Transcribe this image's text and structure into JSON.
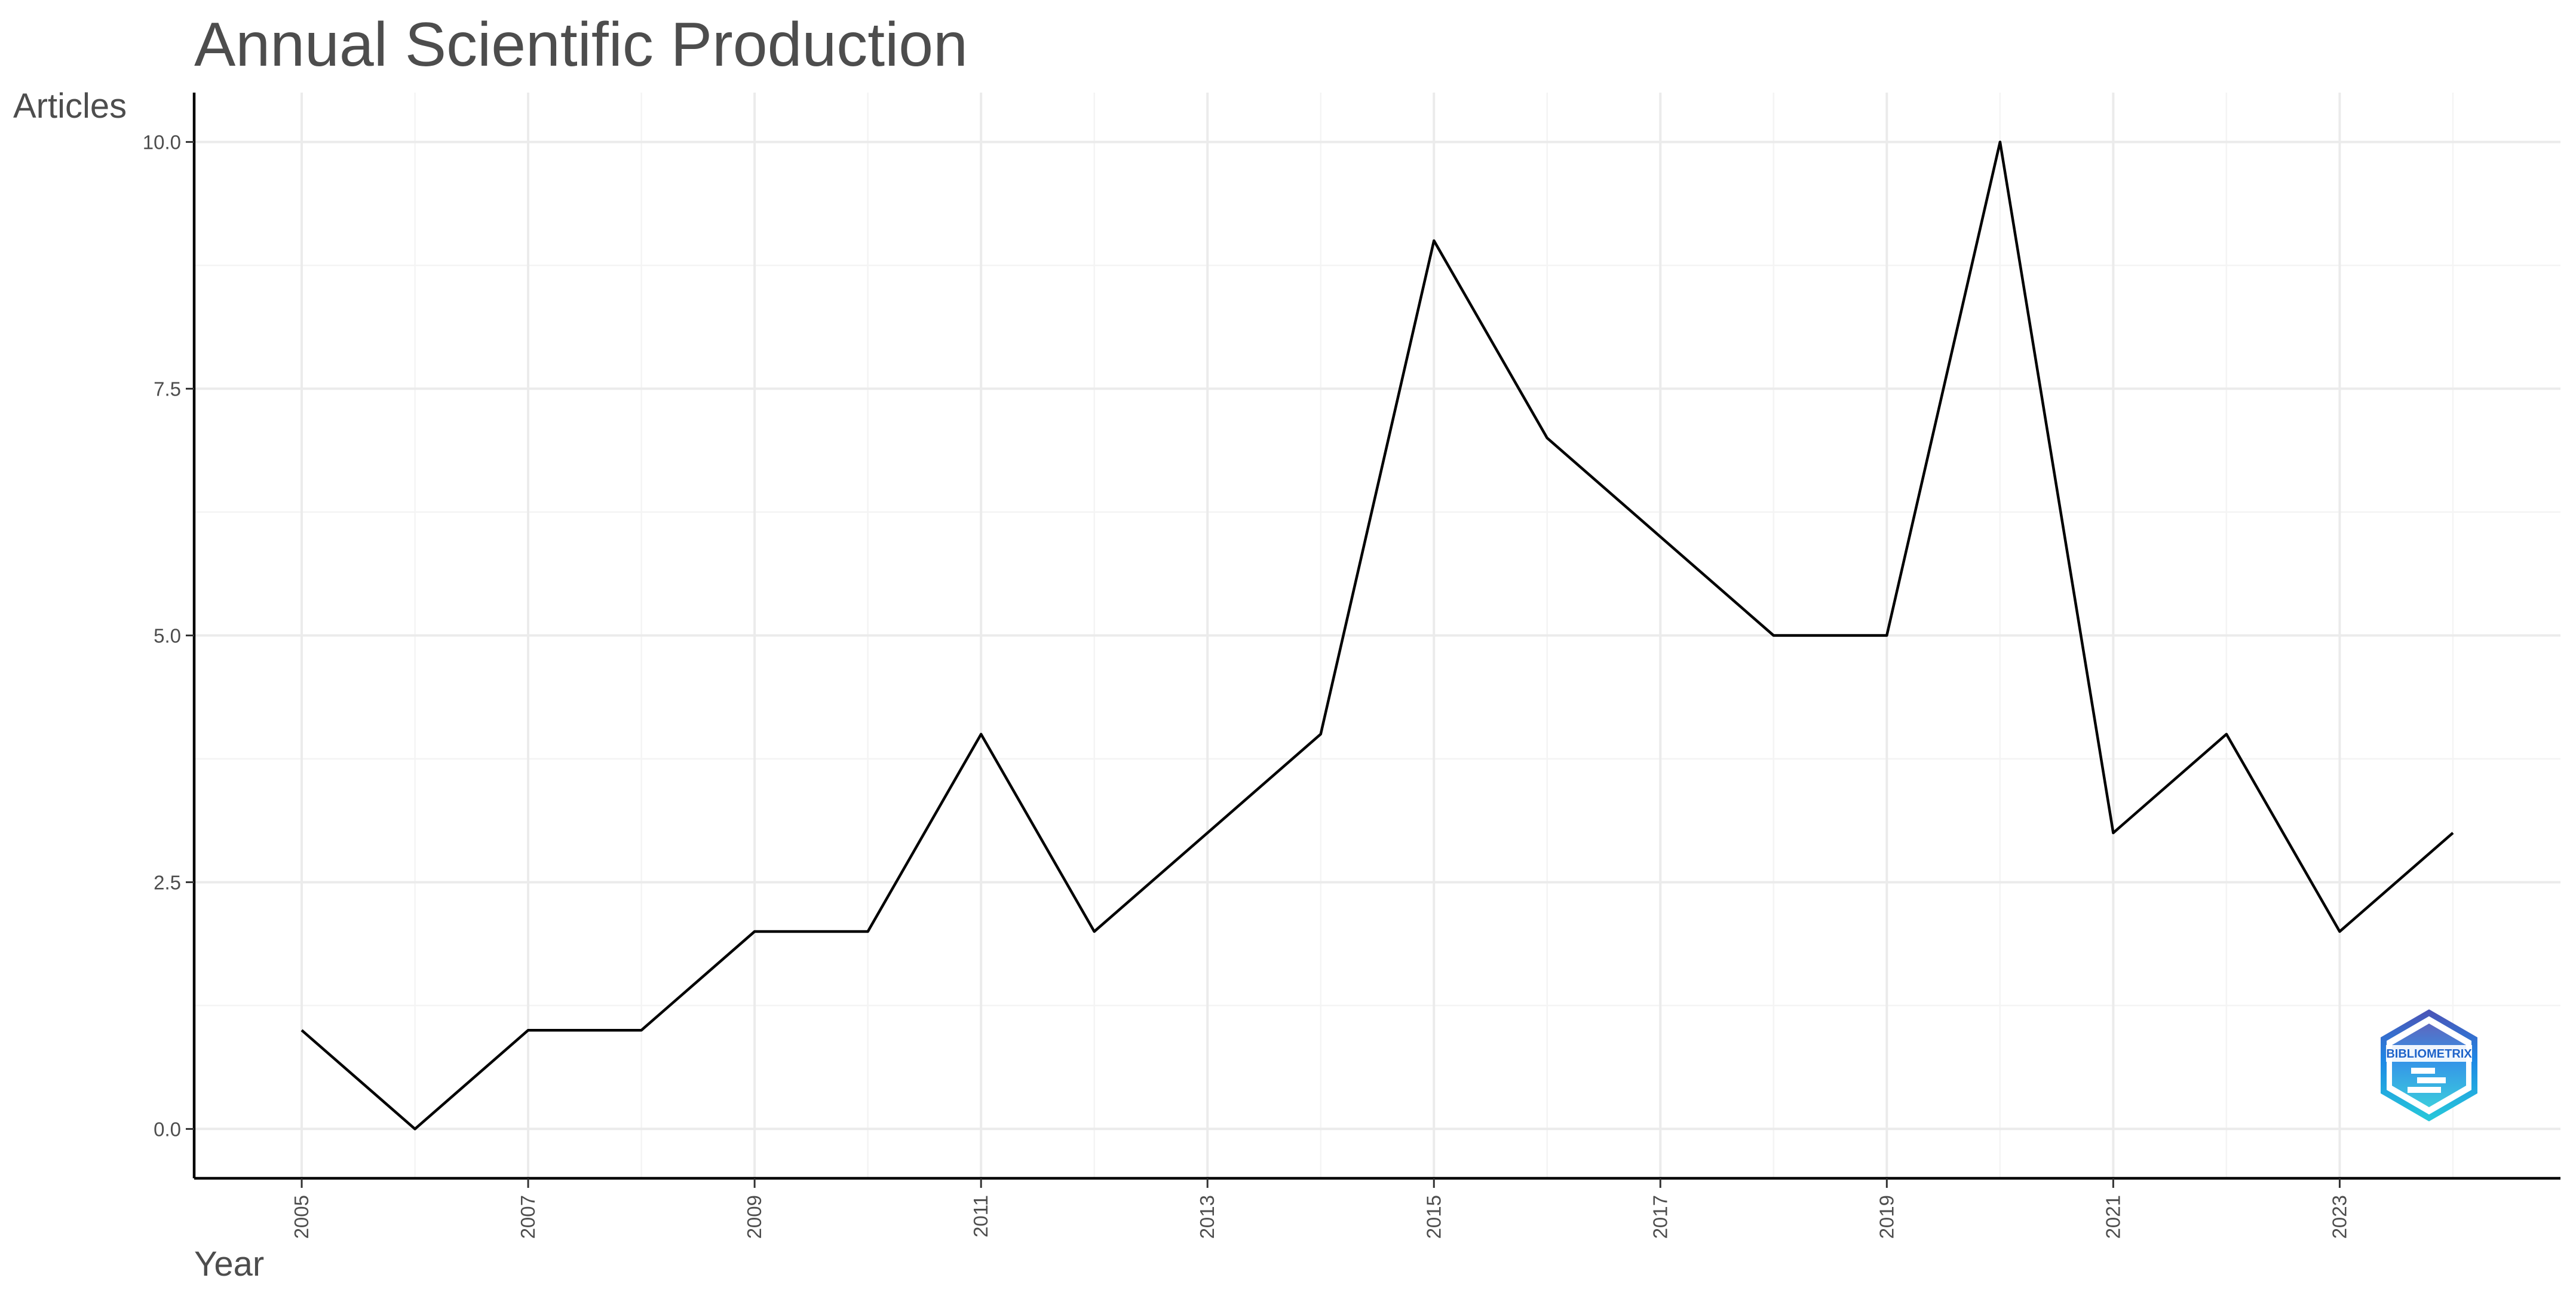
{
  "chart_data": {
    "type": "line",
    "title": "Annual Scientific Production",
    "xlabel": "Year",
    "ylabel": "Articles",
    "x": [
      2005,
      2006,
      2007,
      2008,
      2009,
      2010,
      2011,
      2012,
      2013,
      2014,
      2015,
      2016,
      2017,
      2018,
      2019,
      2020,
      2021,
      2022,
      2023,
      2024
    ],
    "series": [
      {
        "values": [
          1,
          0,
          1,
          1,
          2,
          2,
          4,
          2,
          3,
          4,
          9,
          7,
          6,
          5,
          5,
          10,
          3,
          4,
          2,
          3
        ]
      }
    ],
    "xticks": [
      "2005",
      "2007",
      "2009",
      "2011",
      "2013",
      "2015",
      "2017",
      "2019",
      "2021",
      "2023"
    ],
    "yticks": [
      "0.0",
      "2.5",
      "5.0",
      "7.5",
      "10.0"
    ],
    "xlim": [
      2004.05,
      2024.95
    ],
    "ylim": [
      -0.5,
      10.5
    ],
    "grid": true,
    "line_color": "#000000"
  },
  "watermark": {
    "text": "BIBLIOMETRIX",
    "colors": [
      "#4a56b8",
      "#1e88e5",
      "#26c6da"
    ]
  }
}
